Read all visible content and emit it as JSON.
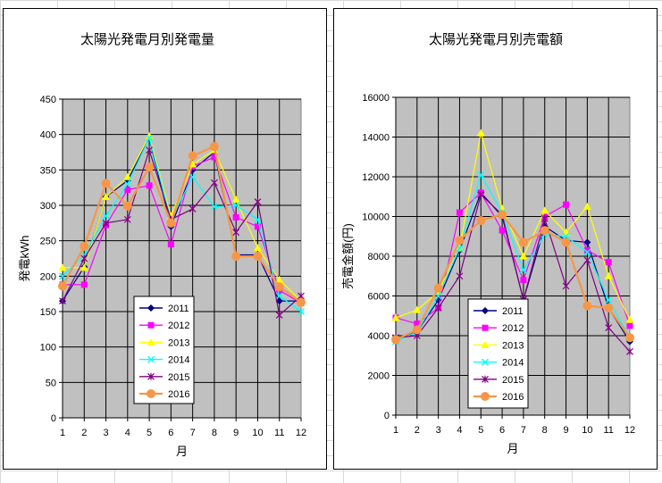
{
  "chart_data": [
    {
      "type": "line",
      "title": "太陽光発電月別発電量",
      "xlabel": "月",
      "ylabel": "発電kWh",
      "x": [
        1,
        2,
        3,
        4,
        5,
        6,
        7,
        8,
        9,
        10,
        11,
        12
      ],
      "ylim": [
        0,
        450
      ],
      "ytick_step": 50,
      "grid": true,
      "legend_position": "bottom-center",
      "series": [
        {
          "name": "2011",
          "color": "#000080",
          "marker": "diamond",
          "values": [
            165,
            213,
            312,
            335,
            395,
            270,
            350,
            375,
            230,
            230,
            165,
            165
          ]
        },
        {
          "name": "2012",
          "color": "#ff00ff",
          "marker": "square",
          "values": [
            188,
            188,
            272,
            322,
            328,
            245,
            355,
            368,
            283,
            270,
            180,
            162
          ]
        },
        {
          "name": "2013",
          "color": "#ffff00",
          "marker": "triangle",
          "values": [
            212,
            212,
            312,
            340,
            398,
            285,
            358,
            378,
            308,
            240,
            195,
            165
          ]
        },
        {
          "name": "2014",
          "color": "#00ffff",
          "marker": "x",
          "values": [
            200,
            230,
            285,
            330,
            395,
            280,
            340,
            298,
            300,
            280,
            172,
            150
          ]
        },
        {
          "name": "2015",
          "color": "#800080",
          "marker": "star",
          "values": [
            165,
            225,
            275,
            280,
            378,
            280,
            295,
            332,
            262,
            305,
            145,
            172
          ]
        },
        {
          "name": "2016",
          "color": "#f79646",
          "marker": "circle",
          "values": [
            186,
            242,
            331,
            299,
            354,
            275,
            370,
            383,
            228,
            228,
            185,
            163
          ]
        }
      ]
    },
    {
      "type": "line",
      "title": "太陽光発電月別売電額",
      "xlabel": "月",
      "ylabel": "売電金額(円)",
      "x": [
        1,
        2,
        3,
        4,
        5,
        6,
        7,
        8,
        9,
        10,
        11,
        12
      ],
      "ylim": [
        0,
        16000
      ],
      "ytick_step": 2000,
      "grid": true,
      "legend_position": "bottom-center",
      "series": [
        {
          "name": "2011",
          "color": "#000080",
          "marker": "diamond",
          "values": [
            3800,
            4200,
            5800,
            8300,
            11200,
            10000,
            5800,
            9500,
            8800,
            8700,
            5400,
            3700
          ]
        },
        {
          "name": "2012",
          "color": "#ff00ff",
          "marker": "square",
          "values": [
            4900,
            4600,
            5400,
            10200,
            11200,
            9300,
            6800,
            10000,
            10600,
            8300,
            7700,
            4500
          ]
        },
        {
          "name": "2013",
          "color": "#ffff00",
          "marker": "triangle",
          "values": [
            4900,
            5300,
            6200,
            8400,
            14200,
            10400,
            8000,
            10300,
            9200,
            10500,
            7000,
            4800
          ]
        },
        {
          "name": "2014",
          "color": "#00ffff",
          "marker": "x",
          "values": [
            3700,
            4200,
            6000,
            8400,
            12100,
            10200,
            7300,
            9100,
            9000,
            8200,
            5800,
            3900
          ]
        },
        {
          "name": "2015",
          "color": "#800080",
          "marker": "star",
          "values": [
            3900,
            4000,
            5400,
            7000,
            11100,
            10100,
            5800,
            9900,
            6500,
            7800,
            4400,
            3200
          ]
        },
        {
          "name": "2016",
          "color": "#f79646",
          "marker": "circle",
          "values": [
            3800,
            4300,
            6400,
            8800,
            9800,
            10100,
            8700,
            9300,
            8700,
            5500,
            5400,
            3900
          ]
        }
      ]
    }
  ]
}
